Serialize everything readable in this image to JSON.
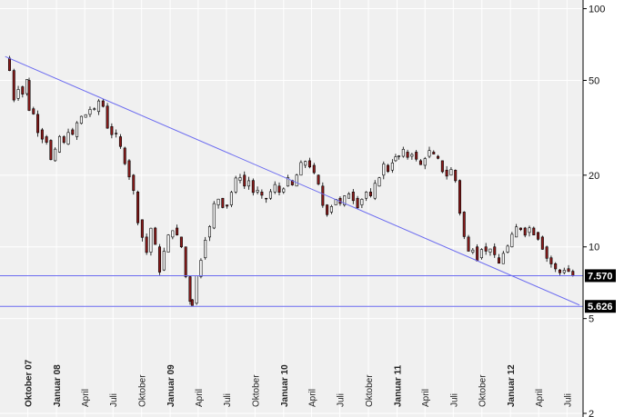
{
  "chart_data": {
    "type": "candlestick",
    "title": "",
    "xlabel": "",
    "ylabel": "",
    "y_scale": "log",
    "ylim": [
      2,
      105
    ],
    "y_ticks": [
      {
        "value": 100,
        "label": "100"
      },
      {
        "value": 50,
        "label": "50"
      },
      {
        "value": 20,
        "label": "20"
      },
      {
        "value": 10,
        "label": "10"
      },
      {
        "value": 5,
        "label": "5"
      },
      {
        "value": 2,
        "label": "2"
      }
    ],
    "x_range": [
      "2007-07-15",
      "2012-08-10"
    ],
    "x_ticks": [
      {
        "date": "2007-10-01",
        "label": "Oktober 07",
        "bold": true
      },
      {
        "date": "2008-01-01",
        "label": "Januar 08",
        "bold": true
      },
      {
        "date": "2008-04-01",
        "label": "April",
        "bold": false
      },
      {
        "date": "2008-07-01",
        "label": "Juli",
        "bold": false
      },
      {
        "date": "2008-10-01",
        "label": "Oktober",
        "bold": false
      },
      {
        "date": "2009-01-01",
        "label": "Januar 09",
        "bold": true
      },
      {
        "date": "2009-04-01",
        "label": "April",
        "bold": false
      },
      {
        "date": "2009-07-01",
        "label": "Juli",
        "bold": false
      },
      {
        "date": "2009-10-01",
        "label": "Oktober",
        "bold": false
      },
      {
        "date": "2010-01-01",
        "label": "Januar 10",
        "bold": true
      },
      {
        "date": "2010-04-01",
        "label": "April",
        "bold": false
      },
      {
        "date": "2010-07-01",
        "label": "Juli",
        "bold": false
      },
      {
        "date": "2010-10-01",
        "label": "Oktober",
        "bold": false
      },
      {
        "date": "2011-01-01",
        "label": "Januar 11",
        "bold": true
      },
      {
        "date": "2011-04-01",
        "label": "April",
        "bold": false
      },
      {
        "date": "2011-07-01",
        "label": "Juli",
        "bold": false
      },
      {
        "date": "2011-10-01",
        "label": "Oktober",
        "bold": false
      },
      {
        "date": "2012-01-01",
        "label": "Januar 12",
        "bold": true
      },
      {
        "date": "2012-04-01",
        "label": "April",
        "bold": false
      },
      {
        "date": "2012-07-01",
        "label": "Juli",
        "bold": false
      }
    ],
    "grid": true,
    "legend": "none",
    "colors": {
      "background": "#f0f0f0",
      "grid": "#ffffff",
      "line": "#6b6bf0",
      "up_candle": "#ffffff",
      "down_candle": "#8b1a1a",
      "wick": "#000000",
      "badge": "#000000"
    },
    "horizontal_lines": [
      {
        "value": 7.57,
        "label": "7.570"
      },
      {
        "value": 5.626,
        "label": "5.626"
      }
    ],
    "trendline": {
      "from": {
        "date": "2007-07-20",
        "value": 63
      },
      "to": {
        "date": "2012-08-10",
        "value": 5.7
      }
    },
    "series": [
      {
        "ohlc_weekly_close_path": [
          [
            "2007-07-20",
            62
          ],
          [
            "2007-08-03",
            55
          ],
          [
            "2007-08-17",
            42
          ],
          [
            "2007-08-31",
            47
          ],
          [
            "2007-09-14",
            44
          ],
          [
            "2007-09-28",
            50
          ],
          [
            "2007-10-05",
            38
          ],
          [
            "2007-10-19",
            36
          ],
          [
            "2007-11-02",
            31
          ],
          [
            "2007-11-16",
            29
          ],
          [
            "2007-11-30",
            28
          ],
          [
            "2007-12-14",
            23
          ],
          [
            "2007-12-28",
            25
          ],
          [
            "2008-01-11",
            29
          ],
          [
            "2008-01-25",
            27
          ],
          [
            "2008-02-08",
            31
          ],
          [
            "2008-02-22",
            29
          ],
          [
            "2008-03-07",
            33
          ],
          [
            "2008-03-21",
            35
          ],
          [
            "2008-04-04",
            36
          ],
          [
            "2008-04-18",
            38
          ],
          [
            "2008-05-02",
            37
          ],
          [
            "2008-05-16",
            41
          ],
          [
            "2008-05-30",
            39
          ],
          [
            "2008-06-13",
            32
          ],
          [
            "2008-06-27",
            30
          ],
          [
            "2008-07-11",
            29
          ],
          [
            "2008-07-25",
            26
          ],
          [
            "2008-08-08",
            23
          ],
          [
            "2008-08-22",
            20
          ],
          [
            "2008-09-05",
            17
          ],
          [
            "2008-09-19",
            13
          ],
          [
            "2008-10-03",
            11
          ],
          [
            "2008-10-17",
            9.5
          ],
          [
            "2008-10-31",
            12
          ],
          [
            "2008-11-14",
            10
          ],
          [
            "2008-11-28",
            8
          ],
          [
            "2008-12-12",
            9.5
          ],
          [
            "2008-12-26",
            11
          ],
          [
            "2009-01-09",
            12
          ],
          [
            "2009-01-23",
            11
          ],
          [
            "2009-02-06",
            10
          ],
          [
            "2009-02-20",
            7.5
          ],
          [
            "2009-03-06",
            6
          ],
          [
            "2009-03-13",
            5.8
          ],
          [
            "2009-03-27",
            7.5
          ],
          [
            "2009-04-10",
            9
          ],
          [
            "2009-04-24",
            11
          ],
          [
            "2009-05-08",
            12
          ],
          [
            "2009-05-22",
            15
          ],
          [
            "2009-06-05",
            16
          ],
          [
            "2009-06-19",
            15
          ],
          [
            "2009-07-03",
            15
          ],
          [
            "2009-07-17",
            17
          ],
          [
            "2009-07-31",
            19
          ],
          [
            "2009-08-14",
            20
          ],
          [
            "2009-08-28",
            18
          ],
          [
            "2009-09-11",
            19
          ],
          [
            "2009-09-25",
            17
          ],
          [
            "2009-10-09",
            17
          ],
          [
            "2009-10-23",
            16
          ],
          [
            "2009-11-06",
            16
          ],
          [
            "2009-11-20",
            17
          ],
          [
            "2009-12-04",
            18
          ],
          [
            "2009-12-18",
            17
          ],
          [
            "2010-01-01",
            18
          ],
          [
            "2010-01-15",
            19
          ],
          [
            "2010-01-29",
            18
          ],
          [
            "2010-02-12",
            20
          ],
          [
            "2010-02-26",
            22
          ],
          [
            "2010-03-12",
            23
          ],
          [
            "2010-03-26",
            22
          ],
          [
            "2010-04-09",
            20
          ],
          [
            "2010-04-23",
            18
          ],
          [
            "2010-05-07",
            15
          ],
          [
            "2010-05-21",
            14
          ],
          [
            "2010-06-04",
            15
          ],
          [
            "2010-06-18",
            16
          ],
          [
            "2010-07-02",
            15
          ],
          [
            "2010-07-16",
            16
          ],
          [
            "2010-07-30",
            17
          ],
          [
            "2010-08-13",
            16
          ],
          [
            "2010-08-27",
            15
          ],
          [
            "2010-09-10",
            16
          ],
          [
            "2010-09-24",
            17
          ],
          [
            "2010-10-08",
            16
          ],
          [
            "2010-10-22",
            18
          ],
          [
            "2010-11-05",
            20
          ],
          [
            "2010-11-19",
            22
          ],
          [
            "2010-12-03",
            21
          ],
          [
            "2010-12-17",
            23
          ],
          [
            "2011-01-07",
            24
          ],
          [
            "2011-01-21",
            25
          ],
          [
            "2011-02-04",
            24
          ],
          [
            "2011-02-18",
            25
          ],
          [
            "2011-03-04",
            23
          ],
          [
            "2011-03-18",
            22
          ],
          [
            "2011-04-01",
            24
          ],
          [
            "2011-04-15",
            25
          ],
          [
            "2011-04-29",
            24
          ],
          [
            "2011-05-13",
            23
          ],
          [
            "2011-05-27",
            21
          ],
          [
            "2011-06-10",
            20
          ],
          [
            "2011-06-24",
            21
          ],
          [
            "2011-07-08",
            19
          ],
          [
            "2011-07-22",
            14
          ],
          [
            "2011-08-05",
            11
          ],
          [
            "2011-08-19",
            9.5
          ],
          [
            "2011-09-02",
            10
          ],
          [
            "2011-09-16",
            9
          ],
          [
            "2011-09-30",
            10
          ],
          [
            "2011-10-14",
            9.5
          ],
          [
            "2011-10-28",
            10
          ],
          [
            "2011-11-11",
            9
          ],
          [
            "2011-11-25",
            8.5
          ],
          [
            "2011-12-09",
            9.5
          ],
          [
            "2011-12-23",
            10
          ],
          [
            "2012-01-06",
            11
          ],
          [
            "2012-01-20",
            12
          ],
          [
            "2012-02-03",
            12
          ],
          [
            "2012-02-17",
            11.5
          ],
          [
            "2012-03-02",
            12
          ],
          [
            "2012-03-16",
            11.5
          ],
          [
            "2012-03-30",
            11
          ],
          [
            "2012-04-13",
            10
          ],
          [
            "2012-04-27",
            9
          ],
          [
            "2012-05-11",
            8.5
          ],
          [
            "2012-05-25",
            8
          ],
          [
            "2012-06-08",
            7.8
          ],
          [
            "2012-06-22",
            8.1
          ],
          [
            "2012-07-06",
            7.9
          ],
          [
            "2012-07-20",
            7.57
          ]
        ]
      }
    ]
  }
}
